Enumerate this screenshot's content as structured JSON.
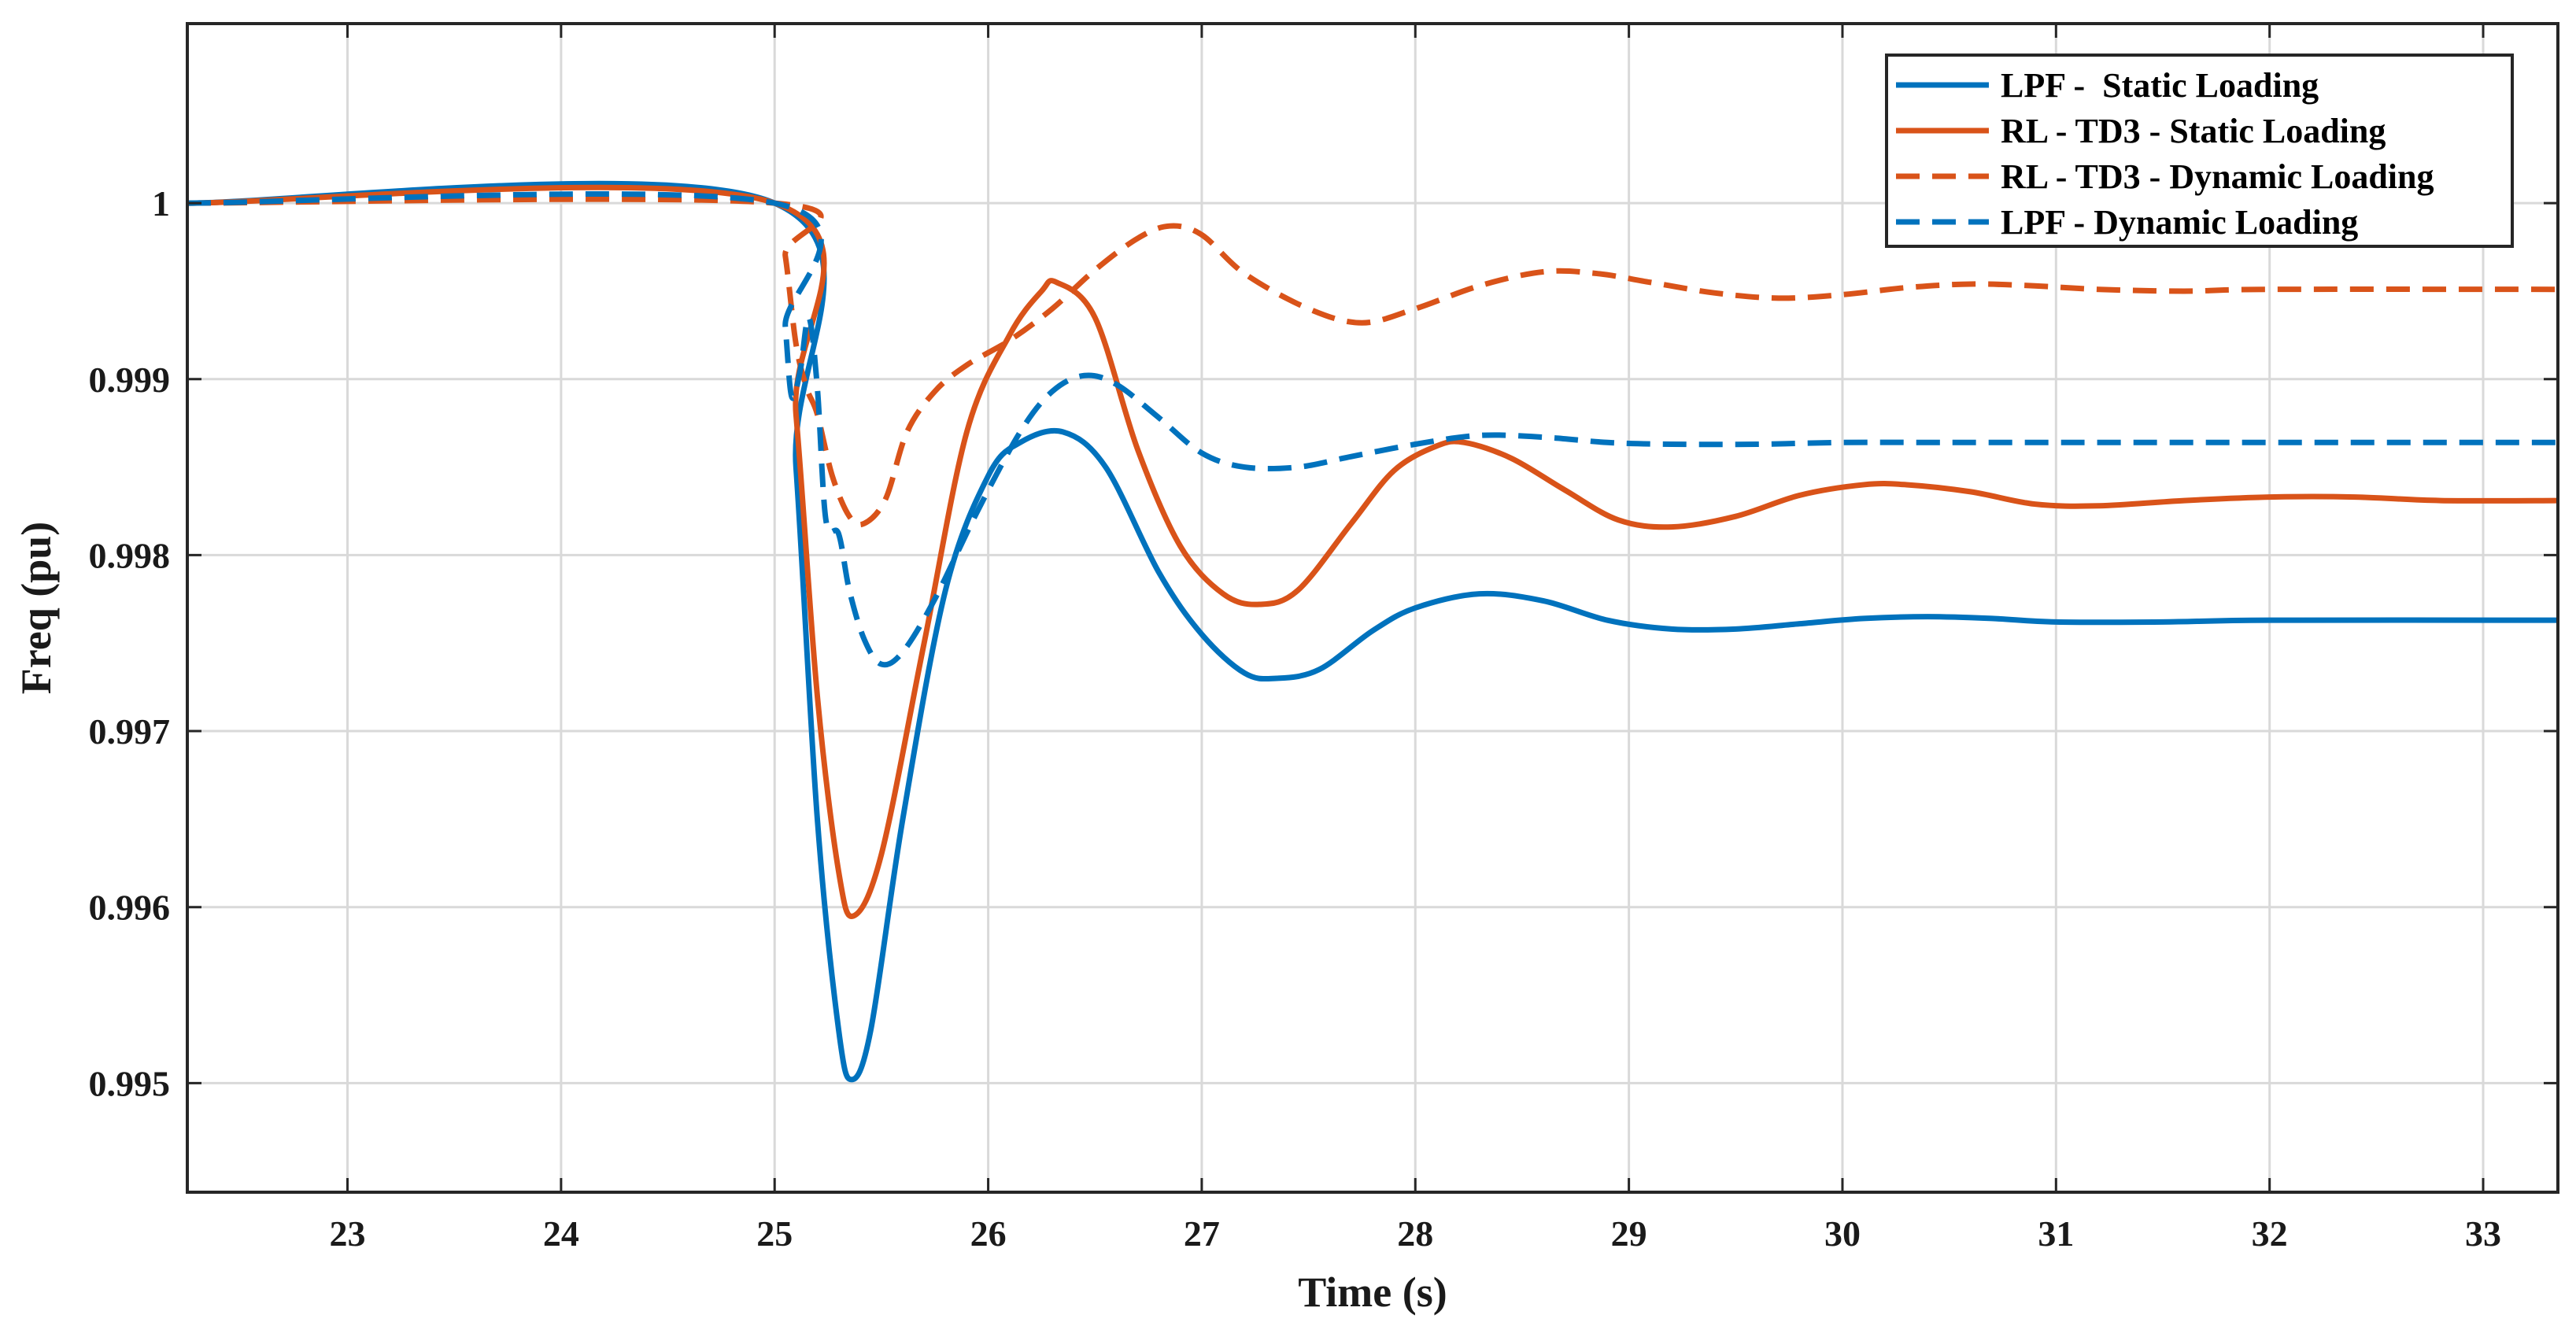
{
  "chart_data": {
    "type": "line",
    "title": "",
    "xlabel": "Time (s)",
    "ylabel": "Freq (pu)",
    "xlim": [
      22.25,
      33.35
    ],
    "ylim": [
      0.99438,
      1.00102
    ],
    "xticks": [
      23,
      24,
      25,
      26,
      27,
      28,
      29,
      30,
      31,
      32,
      33
    ],
    "xtick_labels": [
      "23",
      "24",
      "25",
      "26",
      "27",
      "28",
      "29",
      "30",
      "31",
      "32",
      "33"
    ],
    "yticks": [
      0.995,
      0.996,
      0.997,
      0.998,
      0.999,
      1.0
    ],
    "ytick_labels": [
      "0.995",
      "0.996",
      "0.997",
      "0.998",
      "0.999",
      "1"
    ],
    "grid": true,
    "legend_position": "top-right",
    "series": [
      {
        "name": "LPF -  Static Loading",
        "color": "#0072BD",
        "style": "solid",
        "points": [
          [
            22.25,
            1.0
          ],
          [
            25.0,
            1.0
          ],
          [
            25.1,
            0.9985
          ],
          [
            25.2,
            0.9965
          ],
          [
            25.3,
            0.9953
          ],
          [
            25.36,
            0.99502
          ],
          [
            25.45,
            0.9953
          ],
          [
            25.6,
            0.9965
          ],
          [
            25.8,
            0.9978
          ],
          [
            26.0,
            0.99845
          ],
          [
            26.15,
            0.99864
          ],
          [
            26.35,
            0.9987
          ],
          [
            26.55,
            0.9985
          ],
          [
            26.8,
            0.9979
          ],
          [
            27.0,
            0.99755
          ],
          [
            27.2,
            0.99733
          ],
          [
            27.35,
            0.9973
          ],
          [
            27.55,
            0.99735
          ],
          [
            27.8,
            0.99757
          ],
          [
            28.0,
            0.9977
          ],
          [
            28.3,
            0.99778
          ],
          [
            28.6,
            0.99774
          ],
          [
            28.9,
            0.99763
          ],
          [
            29.2,
            0.99758
          ],
          [
            29.5,
            0.99758
          ],
          [
            29.8,
            0.99761
          ],
          [
            30.1,
            0.99764
          ],
          [
            30.4,
            0.99765
          ],
          [
            30.7,
            0.99764
          ],
          [
            31.0,
            0.99762
          ],
          [
            31.5,
            0.99762
          ],
          [
            32.0,
            0.99763
          ],
          [
            33.35,
            0.99763
          ]
        ]
      },
      {
        "name": "RL - TD3 - Static Loading",
        "color": "#D95319",
        "style": "solid",
        "points": [
          [
            22.25,
            1.0
          ],
          [
            25.0,
            1.0
          ],
          [
            25.1,
            0.9988
          ],
          [
            25.2,
            0.9972
          ],
          [
            25.3,
            0.9962
          ],
          [
            25.37,
            0.99595
          ],
          [
            25.5,
            0.9963
          ],
          [
            25.7,
            0.9975
          ],
          [
            25.9,
            0.9987
          ],
          [
            26.1,
            0.99925
          ],
          [
            26.25,
            0.9995
          ],
          [
            26.32,
            0.99955
          ],
          [
            26.5,
            0.99935
          ],
          [
            26.7,
            0.9986
          ],
          [
            26.9,
            0.99805
          ],
          [
            27.1,
            0.99778
          ],
          [
            27.27,
            0.99772
          ],
          [
            27.45,
            0.9978
          ],
          [
            27.7,
            0.99818
          ],
          [
            27.9,
            0.99848
          ],
          [
            28.1,
            0.99862
          ],
          [
            28.23,
            0.99864
          ],
          [
            28.45,
            0.99855
          ],
          [
            28.7,
            0.99837
          ],
          [
            28.95,
            0.9982
          ],
          [
            29.2,
            0.99816
          ],
          [
            29.5,
            0.99822
          ],
          [
            29.8,
            0.99834
          ],
          [
            30.1,
            0.9984
          ],
          [
            30.3,
            0.9984
          ],
          [
            30.6,
            0.99836
          ],
          [
            30.9,
            0.99829
          ],
          [
            31.2,
            0.99828
          ],
          [
            31.6,
            0.99831
          ],
          [
            32.0,
            0.99833
          ],
          [
            32.4,
            0.99833
          ],
          [
            32.8,
            0.99831
          ],
          [
            33.35,
            0.99831
          ]
        ]
      },
      {
        "name": "RL - TD3 - Dynamic Loading",
        "color": "#D95319",
        "style": "dashed",
        "points": [
          [
            22.25,
            1.0
          ],
          [
            25.0,
            1.0
          ],
          [
            25.05,
            0.9997
          ],
          [
            25.1,
            0.9992
          ],
          [
            25.15,
            0.99895
          ],
          [
            25.2,
            0.9988
          ],
          [
            25.27,
            0.99845
          ],
          [
            25.35,
            0.99822
          ],
          [
            25.42,
            0.99818
          ],
          [
            25.52,
            0.99832
          ],
          [
            25.62,
            0.9987
          ],
          [
            25.75,
            0.99893
          ],
          [
            25.9,
            0.99908
          ],
          [
            26.1,
            0.99922
          ],
          [
            26.3,
            0.9994
          ],
          [
            26.5,
            0.99962
          ],
          [
            26.7,
            0.9998
          ],
          [
            26.85,
            0.99987
          ],
          [
            27.0,
            0.99982
          ],
          [
            27.2,
            0.9996
          ],
          [
            27.5,
            0.9994
          ],
          [
            27.75,
            0.99932
          ],
          [
            28.0,
            0.9994
          ],
          [
            28.3,
            0.99953
          ],
          [
            28.6,
            0.99961
          ],
          [
            28.85,
            0.9996
          ],
          [
            29.1,
            0.99955
          ],
          [
            29.4,
            0.99949
          ],
          [
            29.7,
            0.99946
          ],
          [
            30.0,
            0.99948
          ],
          [
            30.3,
            0.99952
          ],
          [
            30.6,
            0.99954
          ],
          [
            30.9,
            0.99953
          ],
          [
            31.2,
            0.99951
          ],
          [
            31.6,
            0.9995
          ],
          [
            32.0,
            0.99951
          ],
          [
            33.35,
            0.99951
          ]
        ]
      },
      {
        "name": "LPF - Dynamic Loading",
        "color": "#0072BD",
        "style": "dashed",
        "points": [
          [
            22.25,
            1.0
          ],
          [
            25.0,
            1.0
          ],
          [
            25.05,
            0.9993
          ],
          [
            25.08,
            0.9989
          ],
          [
            25.12,
            0.99905
          ],
          [
            25.16,
            0.99935
          ],
          [
            25.2,
            0.99895
          ],
          [
            25.24,
            0.9982
          ],
          [
            25.3,
            0.99812
          ],
          [
            25.35,
            0.9978
          ],
          [
            25.42,
            0.99752
          ],
          [
            25.5,
            0.99738
          ],
          [
            25.6,
            0.99745
          ],
          [
            25.75,
            0.99775
          ],
          [
            25.95,
            0.99825
          ],
          [
            26.15,
            0.9987
          ],
          [
            26.3,
            0.99893
          ],
          [
            26.45,
            0.99902
          ],
          [
            26.6,
            0.99897
          ],
          [
            26.8,
            0.99878
          ],
          [
            27.0,
            0.99858
          ],
          [
            27.2,
            0.9985
          ],
          [
            27.45,
            0.9985
          ],
          [
            27.7,
            0.99856
          ],
          [
            28.0,
            0.99863
          ],
          [
            28.3,
            0.99868
          ],
          [
            28.6,
            0.99867
          ],
          [
            28.9,
            0.99864
          ],
          [
            29.2,
            0.99863
          ],
          [
            29.6,
            0.99863
          ],
          [
            30.0,
            0.99864
          ],
          [
            30.5,
            0.99864
          ],
          [
            31.0,
            0.99864
          ],
          [
            33.35,
            0.99864
          ]
        ]
      }
    ]
  }
}
